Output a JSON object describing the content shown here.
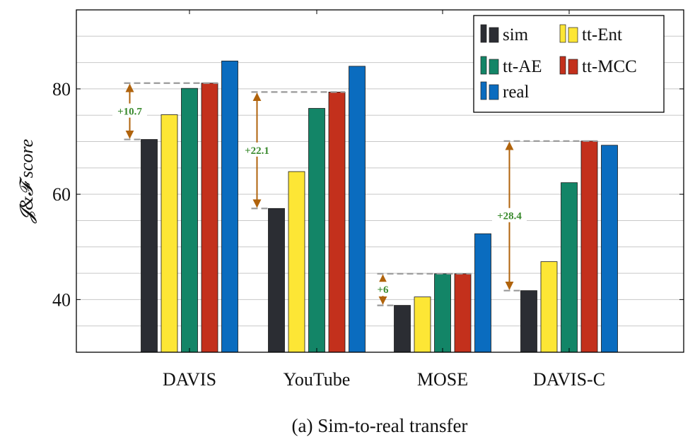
{
  "colors": {
    "sim": "#2b2d33",
    "tt-Ent": "#fde635",
    "tt-AE": "#138567",
    "tt-MCC": "#c3301c",
    "real": "#0a6cbf",
    "arrow": "#b0630c",
    "dash": "#999999",
    "gain_text": "#3a8a2e"
  },
  "caption": "(a) Sim-to-real transfer",
  "chart_data": {
    "type": "bar",
    "ylabel": "𝓙&𝓕 score",
    "ylim": [
      30,
      95
    ],
    "yticks": [
      40,
      60,
      80
    ],
    "grid": true,
    "legend_position": "top-right",
    "categories": [
      "DAVIS",
      "YouTube",
      "MOSE",
      "DAVIS-C"
    ],
    "series": [
      {
        "name": "sim",
        "values": [
          70.4,
          57.3,
          38.9,
          41.7
        ]
      },
      {
        "name": "tt-Ent",
        "values": [
          75.1,
          64.3,
          40.5,
          47.2
        ]
      },
      {
        "name": "tt-AE",
        "values": [
          80.1,
          76.3,
          44.9,
          62.2
        ]
      },
      {
        "name": "tt-MCC",
        "values": [
          81.1,
          79.4,
          44.9,
          70.1
        ]
      },
      {
        "name": "real",
        "values": [
          85.3,
          84.3,
          52.5,
          69.3
        ]
      }
    ],
    "annotations": [
      {
        "category": "DAVIS",
        "from": 70.4,
        "to": 81.1,
        "text": "+10.7"
      },
      {
        "category": "YouTube",
        "from": 57.3,
        "to": 79.4,
        "text": "+22.1"
      },
      {
        "category": "MOSE",
        "from": 38.9,
        "to": 44.9,
        "text": "+6"
      },
      {
        "category": "DAVIS-C",
        "from": 41.7,
        "to": 70.1,
        "text": "+28.4"
      }
    ]
  }
}
